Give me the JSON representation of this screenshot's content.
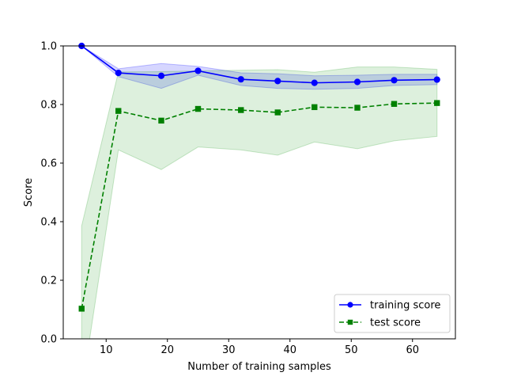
{
  "chart_data": {
    "type": "line",
    "xlabel": "Number of training samples",
    "ylabel": "Score",
    "xlim": [
      3,
      67
    ],
    "ylim": [
      0,
      1.0
    ],
    "x_ticks": [
      10,
      20,
      30,
      40,
      50,
      60
    ],
    "y_ticks": [
      0.0,
      0.2,
      0.4,
      0.6,
      0.8,
      1.0
    ],
    "x_tick_labels": [
      "10",
      "20",
      "30",
      "40",
      "50",
      "60"
    ],
    "y_tick_labels": [
      "0.0",
      "0.2",
      "0.4",
      "0.6",
      "0.8",
      "1.0"
    ],
    "grid": false,
    "legend_position": "lower-right",
    "x": [
      6,
      12,
      19,
      25,
      32,
      38,
      44,
      51,
      57,
      64
    ],
    "series": [
      {
        "name": "training score",
        "color": "#0000ff",
        "band_color": "#0000ff",
        "marker": "circle",
        "line_style": "solid",
        "values": [
          1.0,
          0.908,
          0.898,
          0.915,
          0.886,
          0.88,
          0.874,
          0.877,
          0.883,
          0.885
        ],
        "band_lower": [
          1.0,
          0.895,
          0.855,
          0.9,
          0.865,
          0.855,
          0.852,
          0.855,
          0.865,
          0.868
        ],
        "band_upper": [
          1.0,
          0.922,
          0.94,
          0.93,
          0.908,
          0.905,
          0.898,
          0.9,
          0.903,
          0.903
        ]
      },
      {
        "name": "test score",
        "color": "#008000",
        "band_color": "#2ca02c",
        "marker": "square",
        "line_style": "dashed",
        "values": [
          0.103,
          0.778,
          0.745,
          0.785,
          0.781,
          0.773,
          0.791,
          0.789,
          0.802,
          0.805
        ],
        "band_lower": [
          -0.18,
          0.645,
          0.578,
          0.655,
          0.645,
          0.627,
          0.672,
          0.649,
          0.676,
          0.691
        ],
        "band_upper": [
          0.385,
          0.911,
          0.912,
          0.915,
          0.917,
          0.919,
          0.91,
          0.928,
          0.928,
          0.92
        ]
      }
    ]
  }
}
